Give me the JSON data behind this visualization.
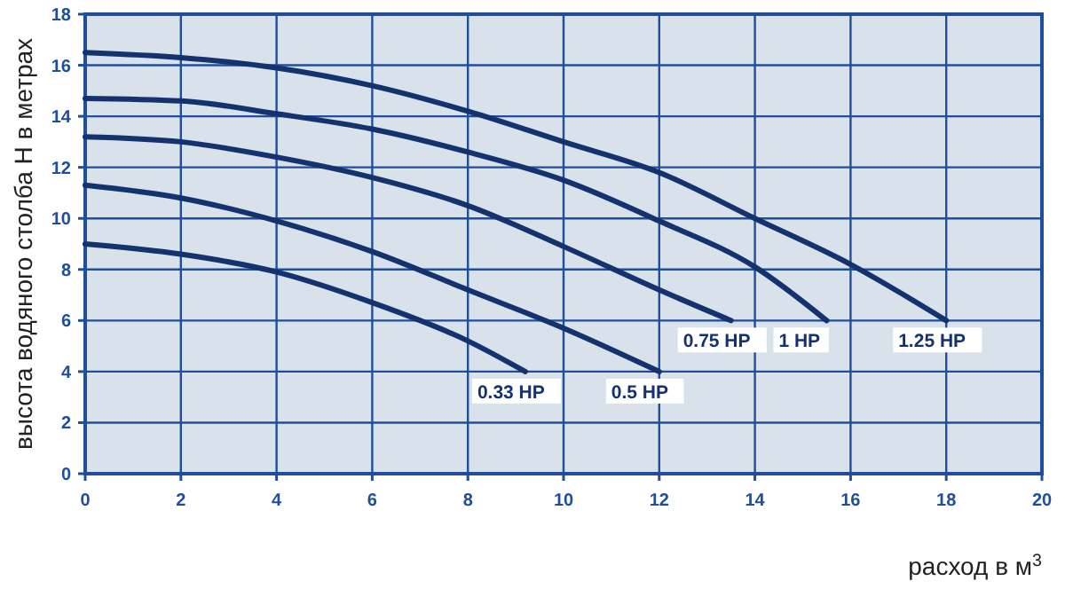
{
  "chart_data": {
    "type": "line",
    "ylabel": "высота водяного столба H в метрах",
    "xlabel": "расход в м$^{3}$",
    "xlim": [
      0,
      20
    ],
    "xticks": [
      0,
      2,
      4,
      6,
      8,
      10,
      12,
      14,
      16,
      18,
      20
    ],
    "ylim": [
      0,
      18
    ],
    "yticks": [
      0,
      2,
      4,
      6,
      8,
      10,
      12,
      14,
      16,
      18
    ],
    "grid": true,
    "marker": "none",
    "line_style": "solid",
    "series": [
      {
        "name": "0.33 HP",
        "color": "#14336e",
        "x": [
          0,
          2,
          4,
          6,
          8,
          9.2
        ],
        "values": [
          9.0,
          8.6,
          7.9,
          6.7,
          5.2,
          4.0
        ]
      },
      {
        "name": "0.5 HP",
        "color": "#14336e",
        "x": [
          0,
          2,
          4,
          6,
          8,
          10,
          12
        ],
        "values": [
          11.3,
          10.8,
          9.9,
          8.7,
          7.2,
          5.7,
          4.0
        ]
      },
      {
        "name": "0.75 HP",
        "color": "#14336e",
        "x": [
          0,
          2,
          4,
          6,
          8,
          10,
          12,
          13.5
        ],
        "values": [
          13.2,
          13.0,
          12.4,
          11.6,
          10.5,
          8.9,
          7.2,
          6.0
        ]
      },
      {
        "name": "1 HP",
        "color": "#14336e",
        "x": [
          0,
          2,
          4,
          6,
          8,
          10,
          12,
          14,
          15.5
        ],
        "values": [
          14.7,
          14.6,
          14.1,
          13.5,
          12.6,
          11.5,
          9.9,
          8.1,
          6.0
        ]
      },
      {
        "name": "1.25 HP",
        "color": "#14336e",
        "x": [
          0,
          2,
          4,
          6,
          8,
          10,
          12,
          14,
          16,
          18
        ],
        "values": [
          16.5,
          16.3,
          15.9,
          15.2,
          14.2,
          13.0,
          11.8,
          10.0,
          8.2,
          6.0
        ]
      }
    ]
  }
}
